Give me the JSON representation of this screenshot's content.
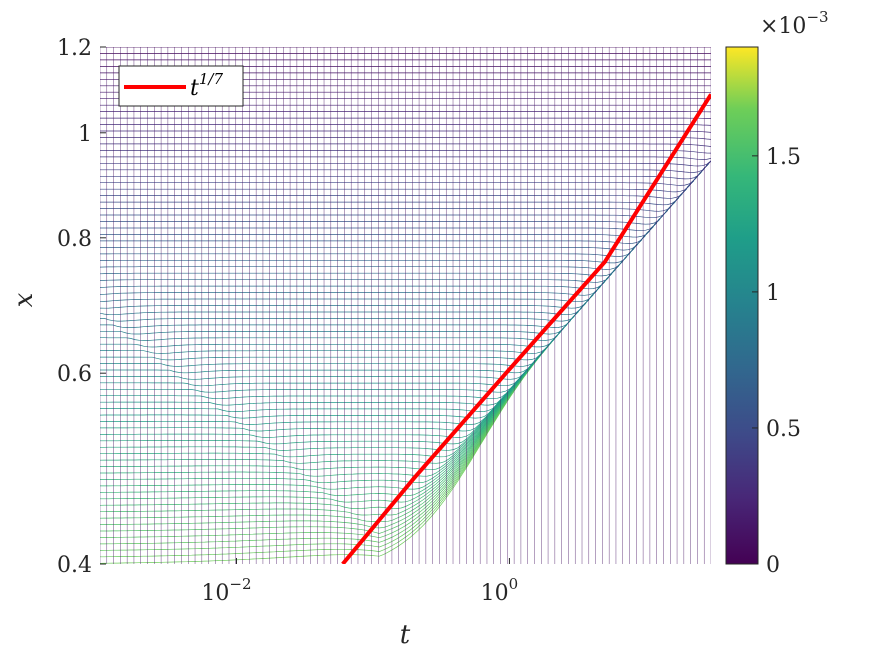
{
  "chart_data": {
    "type": "line",
    "title": "",
    "xlabel": "t",
    "ylabel": "x",
    "x_scale": "log",
    "y_scale": "log",
    "xlim": [
      0.001,
      30
    ],
    "ylim": [
      0.4,
      1.2
    ],
    "x_ticks": [
      {
        "value": 0.01,
        "base": "10",
        "exp": "−2"
      },
      {
        "value": 1,
        "base": "10",
        "exp": "0"
      }
    ],
    "y_ticks": [
      {
        "value": 0.4,
        "label": "0.4"
      },
      {
        "value": 0.6,
        "label": "0.6"
      },
      {
        "value": 0.8,
        "label": "0.8"
      },
      {
        "value": 1.0,
        "label": "1"
      },
      {
        "value": 1.2,
        "label": "1.2"
      }
    ],
    "legend": {
      "position": "top-left",
      "entry_base": "t",
      "entry_exp": "1/7"
    },
    "series": [
      {
        "name": "t^(1/7)",
        "color": "#ff0000",
        "x": [
          0.06,
          0.2,
          1,
          5,
          30
        ],
        "y": [
          0.4,
          0.48,
          0.605,
          0.76,
          1.085
        ]
      }
    ],
    "colorbar": {
      "colormap": "viridis",
      "min": 0,
      "max": 0.0019,
      "ticks": [
        {
          "value": 0,
          "label": "0"
        },
        {
          "value": 0.0005,
          "label": "0.5"
        },
        {
          "value": 0.001,
          "label": "1"
        },
        {
          "value": 0.0015,
          "label": "1.5"
        }
      ],
      "multiplier_base": "×10",
      "multiplier_exp": "−3"
    },
    "grid": false
  }
}
